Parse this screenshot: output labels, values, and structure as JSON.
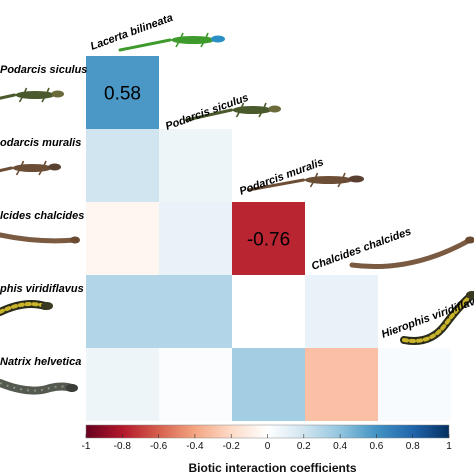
{
  "chart_data": {
    "type": "heatmap",
    "species": [
      "Lacerta bilineata",
      "Podarcis siculus",
      "Podarcis muralis",
      "Chalcides chalcides",
      "Hierophis viridiflavus",
      "Natrix helvetica"
    ],
    "row_labels": [
      "Podarcis siculus",
      "Podarcis muralis",
      "Chalcides chalcides",
      "Hierophis viridiflavus",
      "Natrix helvetica"
    ],
    "row_labels_visible": [
      "Podarcis siculus",
      "odarcis muralis",
      "lcides chalcides",
      "phis viridiflavus",
      "Natrix helvetica"
    ],
    "column_labels": [
      "Lacerta bilineata",
      "Podarcis siculus",
      "Podarcis muralis",
      "Chalcides chalcides",
      "Hierophis viridiflavus"
    ],
    "column_labels_visible": [
      "Lacerta bilineata",
      "Podarcis siculus",
      "Podarcis muralis",
      "Chalcides chalcides",
      "Hierophis viridiflavu"
    ],
    "matrix": [
      [
        0.58,
        null,
        null,
        null,
        null
      ],
      [
        0.2,
        0.08,
        null,
        null,
        null
      ],
      [
        -0.05,
        0.1,
        -0.76,
        null,
        null
      ],
      [
        0.3,
        0.3,
        0.0,
        0.1,
        null
      ],
      [
        0.08,
        0.02,
        0.35,
        -0.3,
        0.03
      ]
    ],
    "cell_labels": [
      {
        "row": 0,
        "col": 0,
        "text": "0.58"
      },
      {
        "row": 2,
        "col": 2,
        "text": "-0.76"
      }
    ],
    "colorbar": {
      "title": "Biotic interaction coefficients",
      "ticks": [
        "-1",
        "-0.8",
        "-0.6",
        "-0.4",
        "-0.2",
        "0",
        "0.2",
        "0.4",
        "0.6",
        "0.8",
        "1"
      ],
      "range": [
        -1,
        1
      ],
      "low_color": "#67001f",
      "mid_color": "#ffffff",
      "high_color": "#053061"
    },
    "species_icons": [
      {
        "name": "lacerta-bilineata-icon",
        "type": "lizard",
        "body": "#3e9b2b",
        "head": "#2a8fc4"
      },
      {
        "name": "podarcis-siculus-icon",
        "type": "lizard",
        "body": "#4a5a2c",
        "head": "#6a6a3a"
      },
      {
        "name": "podarcis-muralis-icon",
        "type": "lizard",
        "body": "#6b4e35",
        "head": "#5a4030"
      },
      {
        "name": "chalcides-chalcides-icon",
        "type": "skink",
        "body": "#7a5a40",
        "head": "#6a4a30"
      },
      {
        "name": "hierophis-viridiflavus-icon",
        "type": "snake",
        "body": "#2a2a1a",
        "head": "#3a3a20"
      },
      {
        "name": "natrix-helvetica-icon",
        "type": "snake",
        "body": "#555a50",
        "head": "#3a3d38"
      }
    ]
  }
}
